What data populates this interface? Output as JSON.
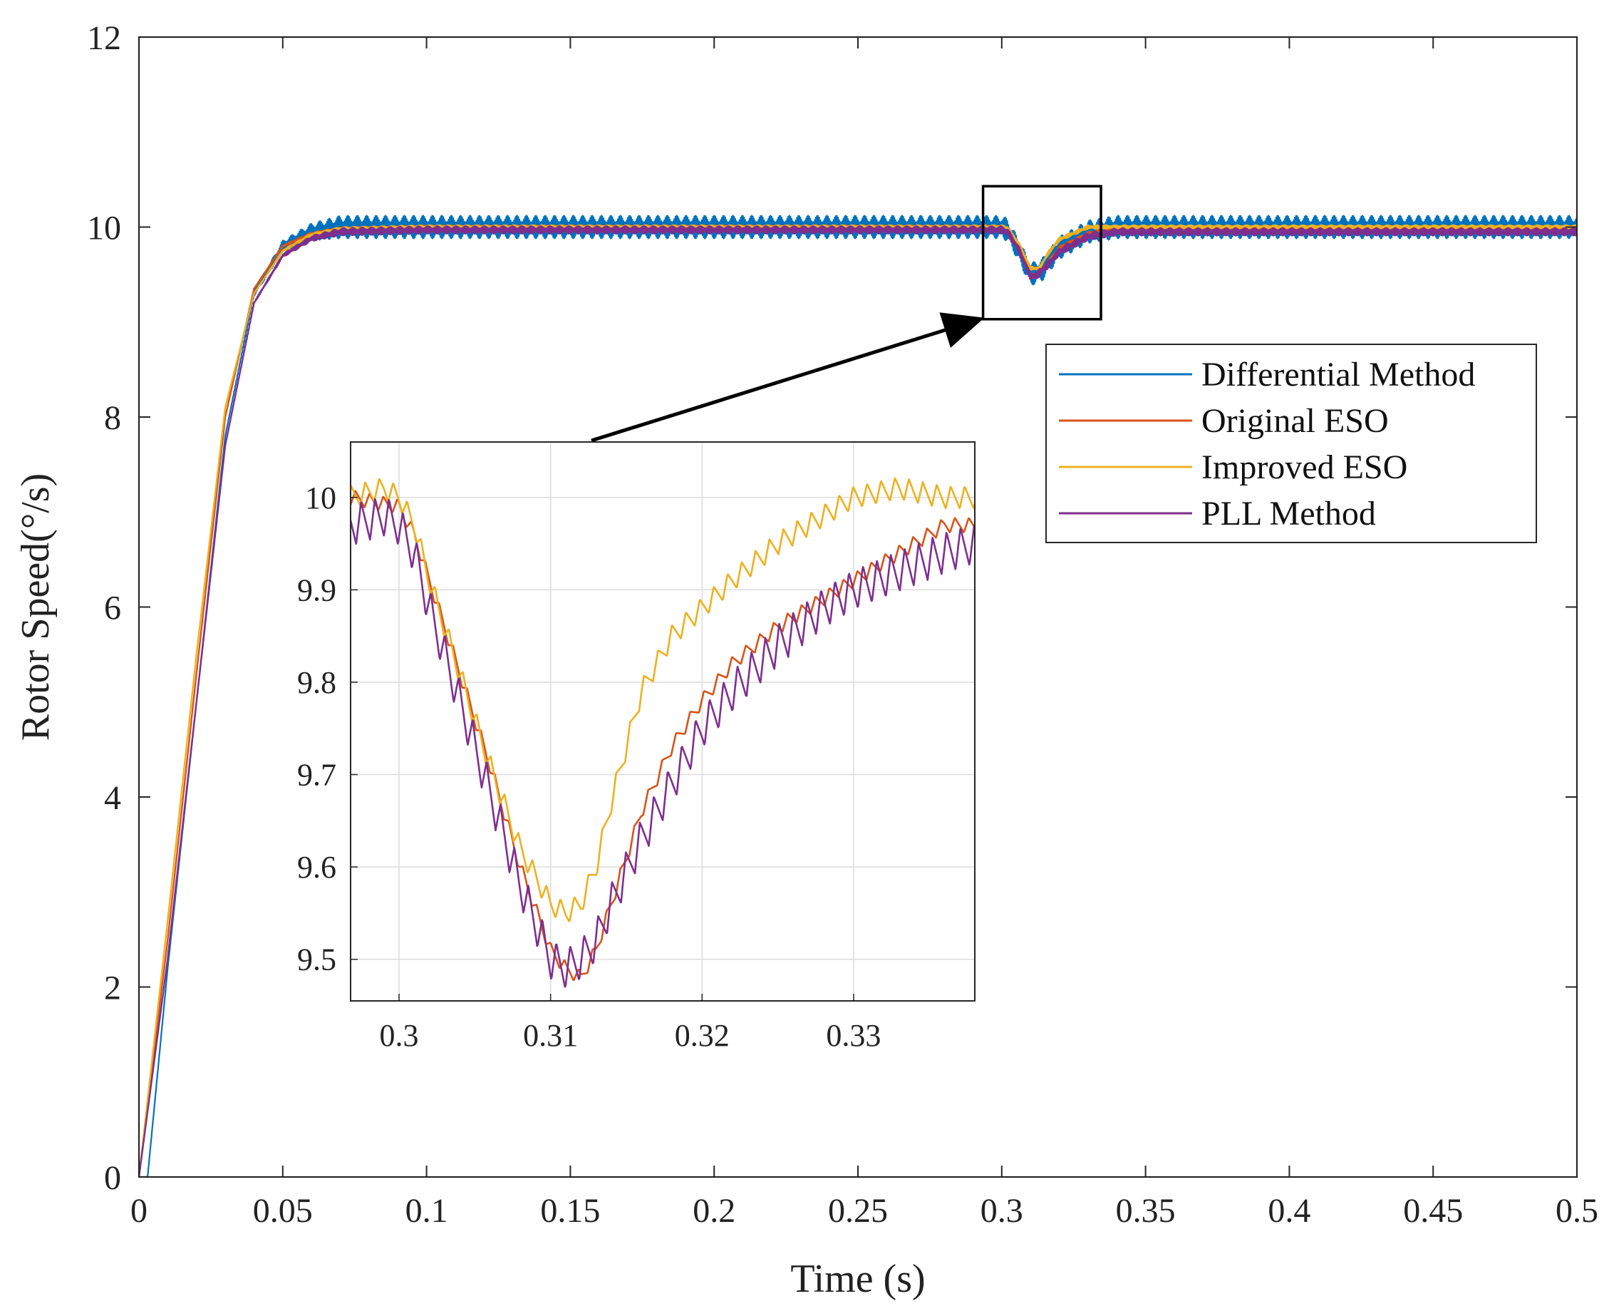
{
  "chart_data": [
    {
      "id": "main",
      "type": "line",
      "title": "",
      "xlabel": "Time (s)",
      "ylabel": "Rotor Speed(°/s)",
      "xlim": [
        0,
        0.5
      ],
      "ylim": [
        0,
        12
      ],
      "xticks": [
        0,
        0.05,
        0.1,
        0.15,
        0.2,
        0.25,
        0.3,
        0.35,
        0.4,
        0.45,
        0.5
      ],
      "xtick_labels": [
        "0",
        "0.05",
        "0.1",
        "0.15",
        "0.2",
        "0.25",
        "0.3",
        "0.35",
        "0.4",
        "0.45",
        "0.5"
      ],
      "yticks": [
        0,
        2,
        4,
        6,
        8,
        10,
        12
      ],
      "ytick_labels": [
        "0",
        "2",
        "4",
        "6",
        "8",
        "10",
        "12"
      ],
      "grid": false,
      "legend_position": "right",
      "series": [
        {
          "name": "Differential Method",
          "color": "#0072BD",
          "x": [
            0,
            0.003,
            0.01,
            0.02,
            0.03,
            0.04,
            0.05,
            0.06,
            0.07,
            0.1,
            0.2,
            0.3,
            0.302,
            0.306,
            0.31,
            0.314,
            0.32,
            0.33,
            0.34,
            0.4,
            0.5
          ],
          "y": [
            0,
            0,
            2.2,
            5.0,
            7.8,
            9.3,
            9.8,
            9.95,
            10.0,
            10.0,
            10.0,
            10.0,
            9.97,
            9.75,
            9.5,
            9.55,
            9.78,
            9.95,
            10.0,
            10.0,
            10.0
          ],
          "ripple": 0.12
        },
        {
          "name": "Original ESO",
          "color": "#D95319",
          "x": [
            0,
            0.01,
            0.02,
            0.03,
            0.04,
            0.05,
            0.06,
            0.07,
            0.1,
            0.2,
            0.3,
            0.302,
            0.306,
            0.31,
            0.312,
            0.316,
            0.32,
            0.33,
            0.34,
            0.4,
            0.5
          ],
          "y": [
            0,
            2.5,
            5.3,
            8.0,
            9.35,
            9.8,
            9.93,
            9.98,
            10.0,
            10.0,
            10.0,
            9.98,
            9.8,
            9.5,
            9.47,
            9.62,
            9.78,
            9.93,
            9.98,
            9.97,
            9.97
          ],
          "ripple": 0.02
        },
        {
          "name": "Improved ESO",
          "color": "#EDB120",
          "x": [
            0,
            0.01,
            0.02,
            0.03,
            0.04,
            0.05,
            0.06,
            0.07,
            0.1,
            0.2,
            0.3,
            0.302,
            0.306,
            0.31,
            0.313,
            0.316,
            0.32,
            0.33,
            0.34,
            0.4,
            0.5
          ],
          "y": [
            0,
            2.7,
            5.5,
            8.1,
            9.3,
            9.75,
            9.92,
            9.98,
            10.0,
            10.0,
            10.0,
            9.99,
            9.82,
            9.57,
            9.56,
            9.72,
            9.87,
            10.0,
            10.0,
            10.0,
            10.0
          ],
          "ripple": 0.02
        },
        {
          "name": "PLL Method",
          "color": "#7E2F8E",
          "x": [
            0,
            0.01,
            0.02,
            0.03,
            0.04,
            0.05,
            0.06,
            0.07,
            0.1,
            0.2,
            0.3,
            0.302,
            0.306,
            0.31,
            0.312,
            0.316,
            0.32,
            0.33,
            0.34,
            0.4,
            0.5
          ],
          "y": [
            0,
            2.3,
            5.0,
            7.7,
            9.2,
            9.7,
            9.88,
            9.95,
            9.97,
            9.97,
            9.97,
            9.95,
            9.76,
            9.48,
            9.49,
            9.6,
            9.74,
            9.9,
            9.95,
            9.95,
            9.95
          ],
          "ripple": 0.04
        }
      ]
    },
    {
      "id": "inset",
      "type": "line",
      "title": "",
      "xlim": [
        0.2968,
        0.338
      ],
      "ylim": [
        9.455,
        10.06
      ],
      "xticks": [
        0.3,
        0.31,
        0.32,
        0.33
      ],
      "xtick_labels": [
        "0.3",
        "0.31",
        "0.32",
        "0.33"
      ],
      "yticks": [
        9.5,
        9.6,
        9.7,
        9.8,
        9.9,
        10.0
      ],
      "ytick_labels": [
        "9.5",
        "9.6",
        "9.7",
        "9.8",
        "9.9",
        "10"
      ],
      "grid": true,
      "zoom_region": {
        "x": [
          0.2935,
          0.3345
        ],
        "y": [
          9.03,
          10.43
        ]
      },
      "series": [
        {
          "name": "Original ESO",
          "color": "#D95319",
          "x": [
            0.2968,
            0.3,
            0.301,
            0.302,
            0.304,
            0.306,
            0.308,
            0.31,
            0.311,
            0.312,
            0.313,
            0.314,
            0.316,
            0.318,
            0.32,
            0.322,
            0.325,
            0.328,
            0.33,
            0.333,
            0.336,
            0.338
          ],
          "y": [
            10.0,
            9.99,
            9.96,
            9.91,
            9.81,
            9.71,
            9.6,
            9.51,
            9.49,
            9.48,
            9.51,
            9.56,
            9.66,
            9.73,
            9.78,
            9.82,
            9.86,
            9.89,
            9.91,
            9.94,
            9.97,
            9.97
          ],
          "ripple": 0.008
        },
        {
          "name": "Improved ESO",
          "color": "#EDB120",
          "x": [
            0.2968,
            0.299,
            0.3,
            0.301,
            0.302,
            0.304,
            0.306,
            0.308,
            0.31,
            0.311,
            0.312,
            0.313,
            0.314,
            0.316,
            0.318,
            0.32,
            0.322,
            0.325,
            0.328,
            0.33,
            0.333,
            0.336,
            0.338
          ],
          "y": [
            10.0,
            10.01,
            10.0,
            9.97,
            9.91,
            9.81,
            9.71,
            9.62,
            9.56,
            9.55,
            9.56,
            9.6,
            9.67,
            9.79,
            9.85,
            9.88,
            9.91,
            9.95,
            9.98,
            10.0,
            10.01,
            10.0,
            10.0
          ],
          "ripple": 0.012
        },
        {
          "name": "PLL Method",
          "color": "#7E2F8E",
          "x": [
            0.2968,
            0.299,
            0.3,
            0.301,
            0.302,
            0.304,
            0.306,
            0.308,
            0.31,
            0.311,
            0.312,
            0.313,
            0.314,
            0.316,
            0.318,
            0.32,
            0.322,
            0.325,
            0.328,
            0.33,
            0.333,
            0.336,
            0.338
          ],
          "y": [
            9.97,
            9.98,
            9.97,
            9.94,
            9.88,
            9.78,
            9.68,
            9.58,
            9.5,
            9.49,
            9.5,
            9.52,
            9.56,
            9.63,
            9.69,
            9.75,
            9.79,
            9.84,
            9.88,
            9.9,
            9.92,
            9.94,
            9.95
          ],
          "ripple": 0.022
        }
      ]
    }
  ]
}
